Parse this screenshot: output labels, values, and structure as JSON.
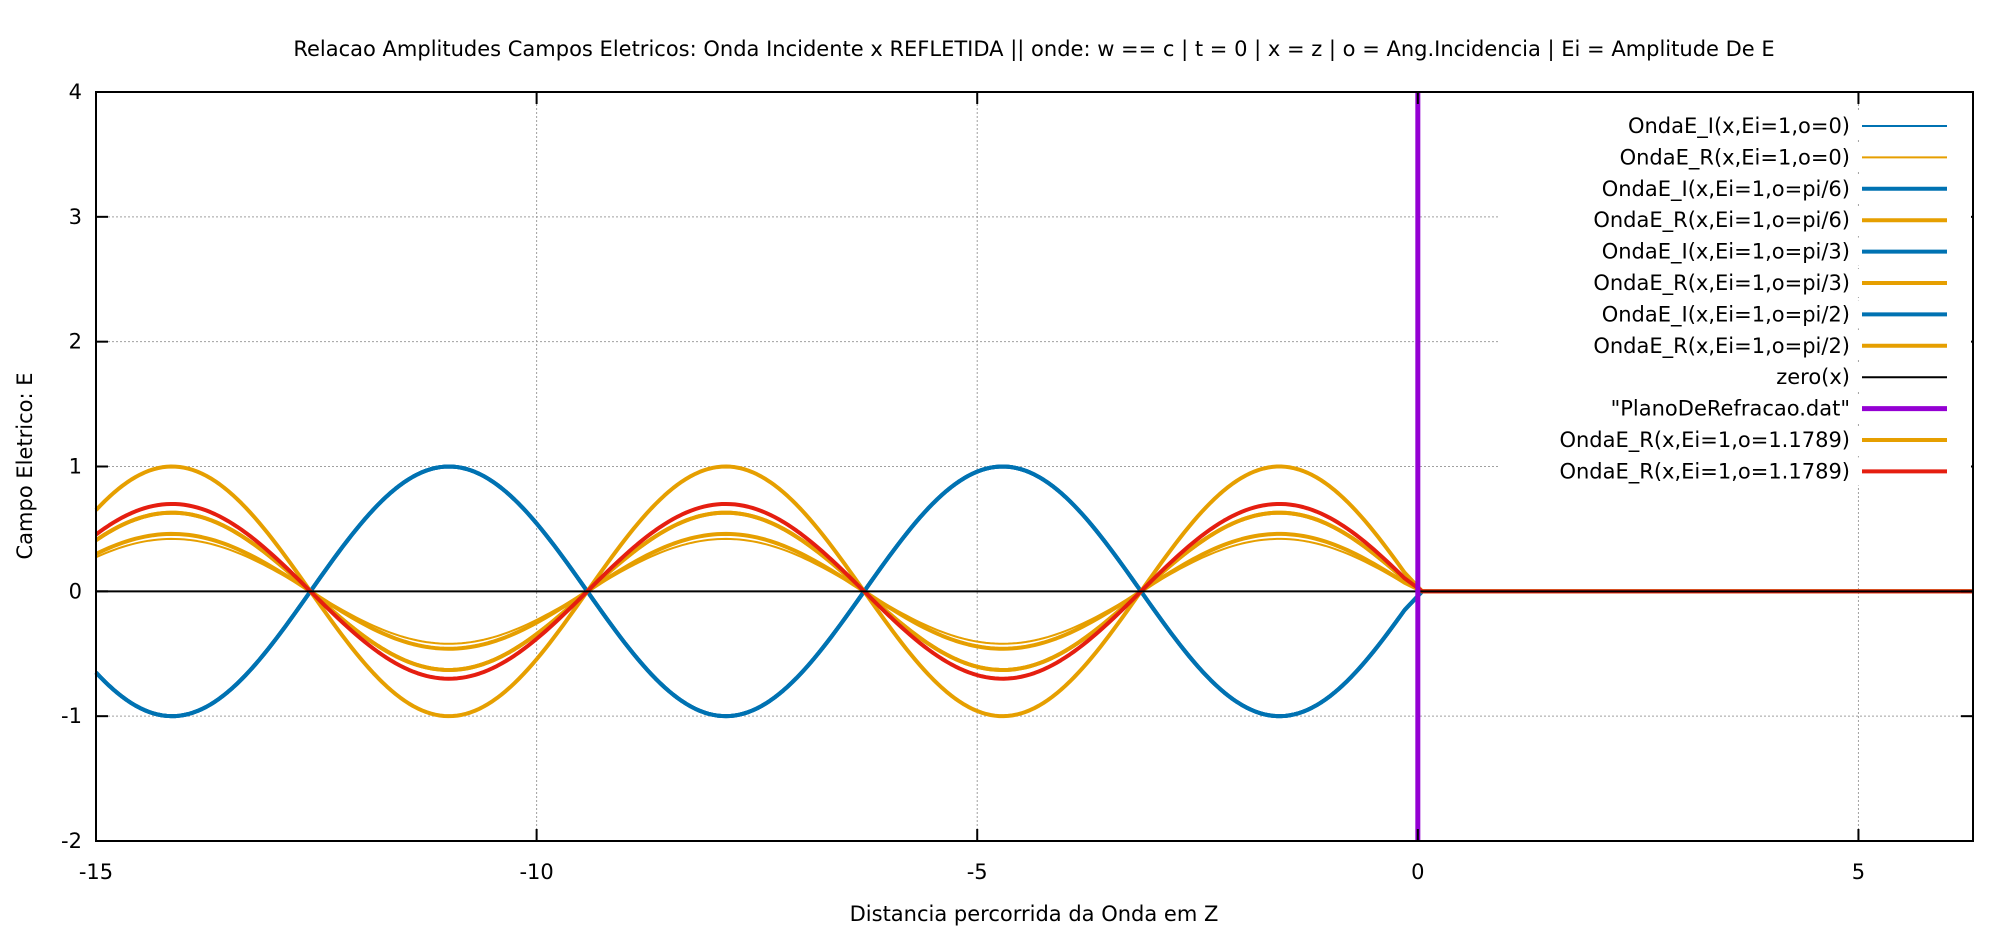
{
  "chart_data": {
    "type": "line",
    "title": "Relacao Amplitudes Campos Eletricos: Onda Incidente x REFLETIDA || onde: w == c | t = 0 | x = z | o = Ang.Incidencia | Ei = Amplitude De E",
    "xlabel": "Distancia percorrida da Onda em Z",
    "ylabel": "Campo Eletrico: E",
    "xlim": [
      -15,
      6.3
    ],
    "ylim": [
      -2,
      4
    ],
    "x_ticks": [
      -15,
      -10,
      -5,
      0,
      5
    ],
    "y_ticks": [
      -2,
      -1,
      0,
      1,
      2,
      3,
      4
    ],
    "x_tick_labels": [
      "-15",
      "-10",
      "-5",
      "0",
      "5"
    ],
    "y_tick_labels": [
      "-2",
      "-1",
      "0",
      "1",
      "2",
      "3",
      "4"
    ],
    "grid": true,
    "legend_position": "top-right",
    "series": [
      {
        "name": "OndaE_I(x,Ei=1,o=0)",
        "kind": "incident",
        "amplitude": 1.0,
        "color": "#0072b2",
        "width": 2
      },
      {
        "name": "OndaE_R(x,Ei=1,o=0)",
        "kind": "reflected",
        "amplitude": 0.42,
        "color": "#e69f00",
        "width": 2
      },
      {
        "name": "OndaE_I(x,Ei=1,o=pi/6)",
        "kind": "incident",
        "amplitude": 1.0,
        "color": "#0072b2",
        "width": 4
      },
      {
        "name": "OndaE_R(x,Ei=1,o=pi/6)",
        "kind": "reflected",
        "amplitude": 0.46,
        "color": "#e69f00",
        "width": 4
      },
      {
        "name": "OndaE_I(x,Ei=1,o=pi/3)",
        "kind": "incident",
        "amplitude": 1.0,
        "color": "#0072b2",
        "width": 4
      },
      {
        "name": "OndaE_R(x,Ei=1,o=pi/3)",
        "kind": "reflected",
        "amplitude": 0.63,
        "color": "#e69f00",
        "width": 4
      },
      {
        "name": "OndaE_I(x,Ei=1,o=pi/2)",
        "kind": "incident",
        "amplitude": 1.0,
        "color": "#0072b2",
        "width": 4
      },
      {
        "name": "OndaE_R(x,Ei=1,o=pi/2)",
        "kind": "reflected",
        "amplitude": 1.0,
        "color": "#e69f00",
        "width": 4
      },
      {
        "name": "zero(x)",
        "kind": "zero",
        "color": "#000000",
        "width": 2
      },
      {
        "name": "\"PlanoDeRefracao.dat\"",
        "kind": "plane",
        "x": 0,
        "color": "#9400d3",
        "width": 5
      },
      {
        "name": "OndaE_R(x,Ei=1,o=1.1789)",
        "kind": "reflected",
        "amplitude": 0.63,
        "color": "#e69f00",
        "width": 4
      },
      {
        "name": "OndaE_R(x,Ei=1,o=1.1789)",
        "kind": "reflected",
        "amplitude": 0.7,
        "color": "#e51e10",
        "width": 4
      }
    ]
  }
}
